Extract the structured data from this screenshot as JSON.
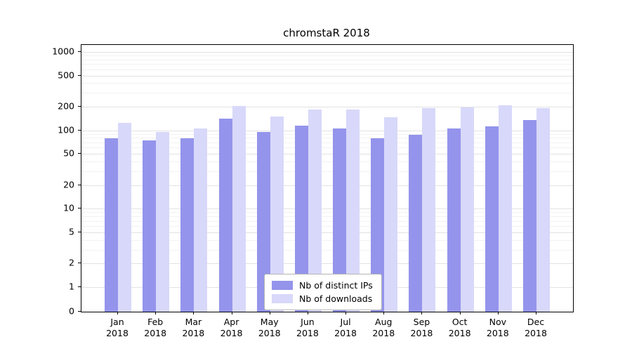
{
  "chart_data": {
    "type": "bar",
    "title": "chromstaR 2018",
    "categories": [
      "Jan",
      "Feb",
      "Mar",
      "Apr",
      "May",
      "Jun",
      "Jul",
      "Aug",
      "Sep",
      "Oct",
      "Nov",
      "Dec"
    ],
    "year_label": "2018",
    "series": [
      {
        "name": "Nb of distinct IPs",
        "color": "#9494ec",
        "values": [
          80,
          75,
          80,
          140,
          95,
          115,
          105,
          80,
          88,
          105,
          112,
          135
        ]
      },
      {
        "name": "Nb of downloads",
        "color": "#d8d8fa",
        "values": [
          125,
          95,
          105,
          205,
          150,
          185,
          185,
          148,
          192,
          198,
          210,
          192
        ]
      }
    ],
    "y_ticks": [
      0,
      1,
      2,
      5,
      10,
      20,
      50,
      100,
      200,
      500,
      1000
    ],
    "yscale": "log",
    "ylim": [
      0,
      1000
    ],
    "grid": true,
    "legend_position": "bottom-center"
  }
}
